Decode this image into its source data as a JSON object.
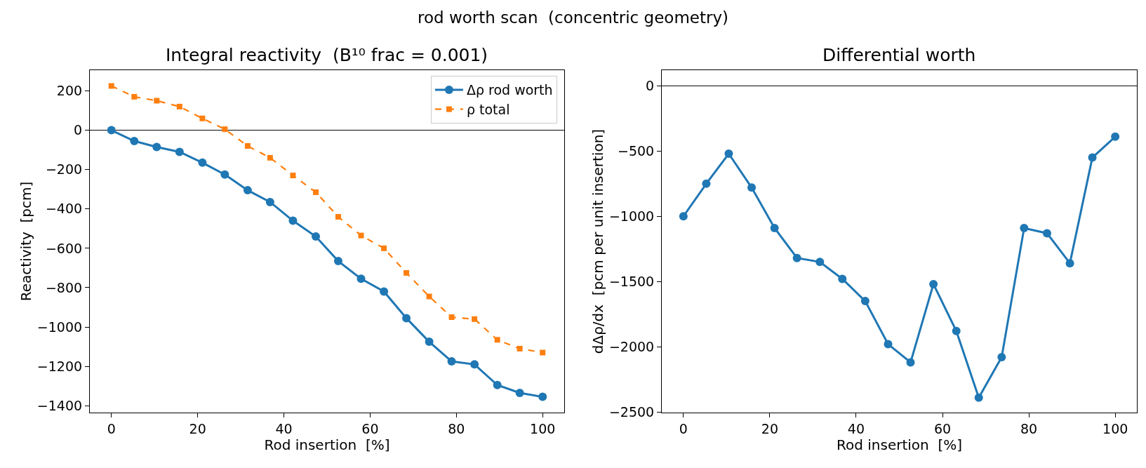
{
  "chart_data": [
    {
      "type": "line",
      "title": "Integral reactivity  (B¹⁰ frac = 0.001)",
      "xlabel": "Rod insertion  [%]",
      "ylabel": "Reactivity  [pcm]",
      "annotations": [
        "rod worth scan  (concentric geometry)"
      ],
      "x": [
        0,
        5.3,
        10.5,
        15.8,
        21.1,
        26.3,
        31.6,
        36.8,
        42.1,
        47.4,
        52.6,
        57.9,
        63.2,
        68.4,
        73.7,
        78.9,
        84.2,
        89.5,
        94.7,
        100
      ],
      "series": [
        {
          "name": "Δρ rod worth",
          "color": "#1f77b4",
          "marker": "circle",
          "line_style": "solid",
          "values": [
            0,
            -55,
            -85,
            -110,
            -165,
            -225,
            -305,
            -365,
            -460,
            -540,
            -665,
            -755,
            -820,
            -955,
            -1075,
            -1175,
            -1190,
            -1295,
            -1335,
            -1355
          ]
        },
        {
          "name": "ρ total",
          "color": "#ff7f0e",
          "marker": "square",
          "line_style": "dashed",
          "values": [
            225,
            170,
            150,
            120,
            60,
            5,
            -80,
            -140,
            -230,
            -315,
            -440,
            -535,
            -600,
            -725,
            -845,
            -950,
            -960,
            -1065,
            -1110,
            -1130
          ]
        }
      ],
      "xlim": [
        -5,
        105
      ],
      "xticks": [
        0,
        20,
        40,
        60,
        80,
        100
      ],
      "ylim": [
        -1435,
        305
      ],
      "yticks": [
        -1400,
        -1200,
        -1000,
        -800,
        -600,
        -400,
        -200,
        0,
        200
      ],
      "grid": false,
      "legend": "top right",
      "ref_lines": [
        {
          "axis": "y",
          "value": 0,
          "color": "#000000"
        }
      ]
    },
    {
      "type": "line",
      "title": "Differential worth",
      "xlabel": "Rod insertion  [%]",
      "ylabel": "dΔρ/dx  [pcm per unit insertion]",
      "x": [
        0,
        5.3,
        10.5,
        15.8,
        21.1,
        26.3,
        31.6,
        36.8,
        42.1,
        47.4,
        52.6,
        57.9,
        63.2,
        68.4,
        73.7,
        78.9,
        84.2,
        89.5,
        94.7,
        100
      ],
      "series": [
        {
          "color": "#1f77b4",
          "values": [
            -1000,
            -750,
            -520,
            -780,
            -1090,
            -1320,
            -1350,
            -1480,
            -1650,
            -1980,
            -2120,
            -1520,
            -1880,
            -2390,
            -2080,
            -1090,
            -1130,
            -1360,
            -550,
            -390
          ]
        }
      ],
      "marker": "circle",
      "line_style": "solid",
      "xlim": [
        -5,
        105
      ],
      "xticks": [
        0,
        20,
        40,
        60,
        80,
        100
      ],
      "ylim": [
        -2505,
        120
      ],
      "yticks": [
        -2500,
        -2000,
        -1500,
        -1000,
        -500,
        0
      ],
      "grid": false,
      "legend": false,
      "ref_lines": [
        {
          "axis": "y",
          "value": 0,
          "color": "#000000"
        }
      ]
    }
  ]
}
